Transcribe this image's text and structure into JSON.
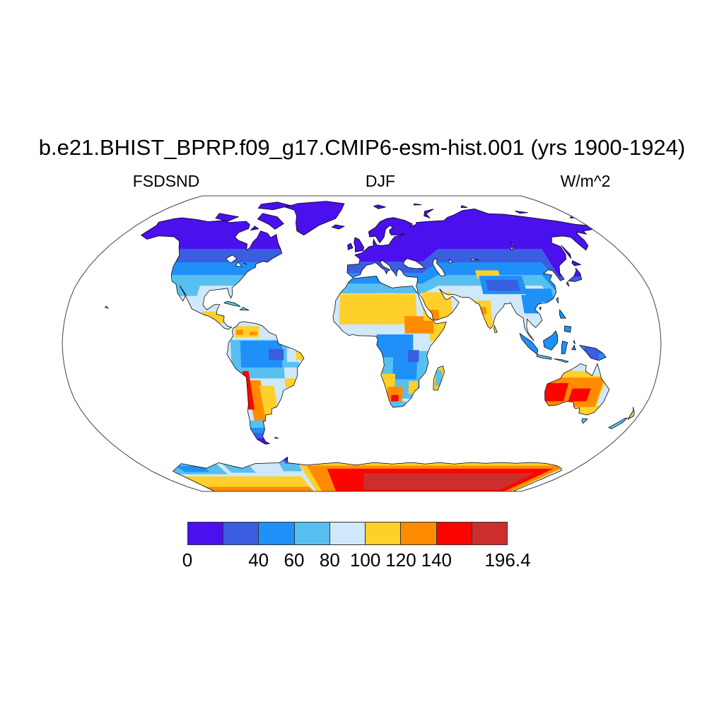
{
  "title": "b.e21.BHIST_BPRP.f09_g17.CMIP6-esm-hist.001 (yrs 1900-1924)",
  "header": {
    "left": "FSDSND",
    "center": "DJF",
    "right": "W/m^2"
  },
  "colorbar": {
    "palette": [
      "#4a10ee",
      "#3b5de0",
      "#1e90f8",
      "#58c0f0",
      "#cfe8fa",
      "#ffd02a",
      "#ff8c00",
      "#fa0500",
      "#cc2e2e"
    ],
    "tick_labels": [
      "0",
      "40",
      "60",
      "80",
      "100",
      "120",
      "140",
      "196.4"
    ],
    "tick_boundary_index": [
      0,
      2,
      3,
      4,
      5,
      6,
      7,
      9
    ],
    "border_color": "#333333",
    "outline_color": "#000000",
    "map_border_color": "#444444"
  },
  "chart_data": {
    "type": "heatmap",
    "subtype": "filled-contour-world-map",
    "projection": "robinson",
    "title": "b.e21.BHIST_BPRP.f09_g17.CMIP6-esm-hist.001 (yrs 1900-1924)",
    "variable": "FSDSND",
    "season": "DJF",
    "units": "W/m^2",
    "years": "1900-1924",
    "contour_levels": [
      0,
      20,
      40,
      60,
      80,
      100,
      120,
      140,
      160
    ],
    "scale_min": 0,
    "scale_max": 196.4,
    "legend_position": "bottom",
    "land_only": true,
    "ocean_fill": "white",
    "palette": [
      "#4a10ee",
      "#3b5de0",
      "#1e90f8",
      "#58c0f0",
      "#cfe8fa",
      "#ffd02a",
      "#ff8c00",
      "#fa0500",
      "#cc2e2e"
    ],
    "region_values_w_m2": {
      "arctic_canada_greenland_siberia": "0-20",
      "northern_europe": "0-20",
      "central_canada_russia_50N": "20-40",
      "usa_central_asia_45N": "40-60",
      "mediterranean_35N": "60-80",
      "subtropics_25_35N": "80-100",
      "sahara_sahel_arabia_india": "100-120",
      "horn_of_africa_ethiopia": "120-140",
      "tibetan_plateau": "20-60",
      "southeast_asia_south_china": "40-60",
      "amazon_congo": "40-80",
      "east_amazon_new_guinea_patch": "20-40",
      "ne_brazil_coast": "80-120",
      "andes_chile": "140-196",
      "argentina": "100-140",
      "patagonia_tip": "0-40",
      "southern_africa": "60-100",
      "kalahari_south_africa": "100-196",
      "australia_interior": "120-196",
      "australia_rim": "100-120",
      "australia_coast_fringe": "80-100",
      "west_antarctica": "40-100",
      "antarctic_coastal_bands": "100-160",
      "east_antarctica_interior": "160-196.4"
    }
  }
}
